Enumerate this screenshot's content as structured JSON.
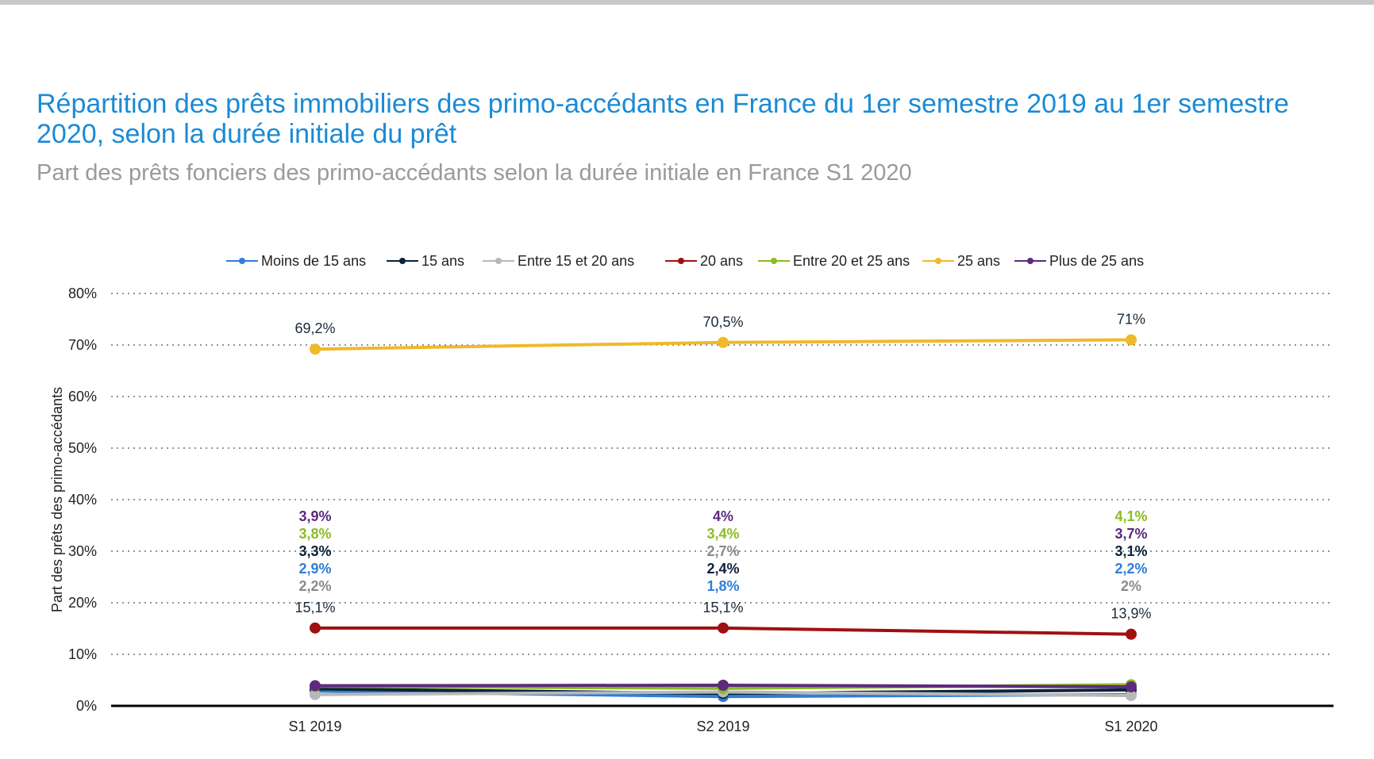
{
  "chart_data": {
    "type": "line",
    "title": "Répartition des prêts immobiliers des primo-accédants en France du 1er semestre 2019 au 1er semestre 2020, selon la durée initiale du prêt",
    "subtitle": "Part des prêts fonciers des primo-accédants selon la durée initiale en France S1 2020",
    "ylabel": "Part des prêts des primo-accédants",
    "xlabel": "",
    "categories": [
      "S1 2019",
      "S2 2019",
      "S1 2020"
    ],
    "ylim": [
      0,
      80
    ],
    "yticks": [
      "0%",
      "10%",
      "20%",
      "30%",
      "40%",
      "50%",
      "60%",
      "70%",
      "80%"
    ],
    "grid": true,
    "legend_position": "top",
    "series": [
      {
        "name": "Moins de 15 ans",
        "color": "#2f7ed8",
        "values": [
          2.9,
          1.8,
          2.2
        ],
        "labels": [
          "2,9%",
          "1,8%",
          "2,2%"
        ]
      },
      {
        "name": "15 ans",
        "color": "#0d233a",
        "values": [
          3.3,
          2.4,
          3.1
        ],
        "labels": [
          "3,3%",
          "2,4%",
          "3,1%"
        ]
      },
      {
        "name": "Entre 15 et 20 ans",
        "color": "#b8b8b8",
        "values": [
          2.2,
          2.7,
          2
        ],
        "labels": [
          "2,2%",
          "2,7%",
          "2%"
        ]
      },
      {
        "name": "20 ans",
        "color": "#a01010",
        "values": [
          15.1,
          15.1,
          13.9
        ],
        "labels": [
          "15,1%",
          "15,1%",
          "13,9%"
        ]
      },
      {
        "name": "Entre 20 et 25 ans",
        "color": "#8bbc21",
        "values": [
          3.8,
          3.4,
          4.1
        ],
        "labels": [
          "3,8%",
          "3,4%",
          "4,1%"
        ]
      },
      {
        "name": "25 ans",
        "color": "#f0b92a",
        "values": [
          69.2,
          70.5,
          71
        ],
        "labels": [
          "69,2%",
          "70,5%",
          "71%"
        ]
      },
      {
        "name": "Plus de 25 ans",
        "color": "#5c2a7e",
        "values": [
          3.9,
          4,
          3.7
        ],
        "labels": [
          "3,9%",
          "4%",
          "3,7%"
        ]
      }
    ]
  }
}
